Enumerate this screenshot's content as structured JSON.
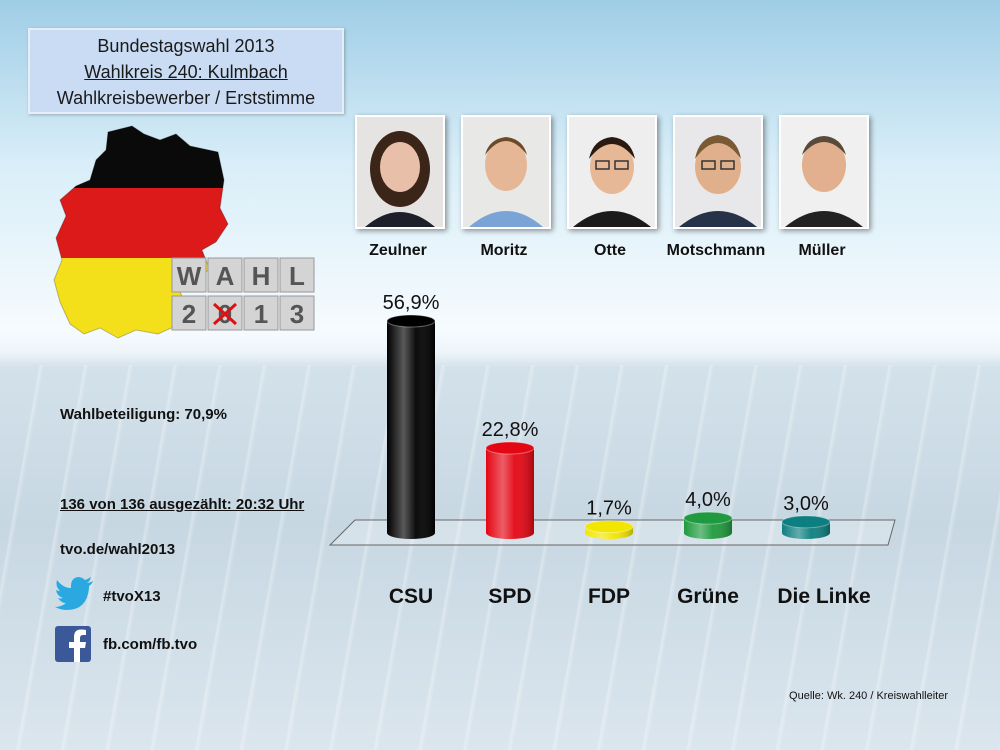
{
  "header": {
    "line1": "Bundestagswahl  2013",
    "line2": "Wahlkreis 240: Kulmbach",
    "line3": "Wahlkreisbewerber  / Erststimme"
  },
  "logo": {
    "row1": [
      "W",
      "A",
      "H",
      "L"
    ],
    "row2": [
      "2",
      "0",
      "1",
      "3"
    ]
  },
  "candidates": [
    {
      "name": "Zeulner"
    },
    {
      "name": "Moritz"
    },
    {
      "name": "Otte"
    },
    {
      "name": "Motschmann"
    },
    {
      "name": "Müller"
    }
  ],
  "info": {
    "turnout": "Wahlbeteiligung: 70,9%",
    "counted": "136 von 136 ausgezählt: 20:32 Uhr",
    "website": "tvo.de/wahl2013"
  },
  "social": {
    "twitter_icon": "twitter-bird-icon",
    "twitter": "#tvoX13",
    "facebook_icon": "facebook-icon",
    "facebook": "fb.com/fb.tvo"
  },
  "source": "Quelle: Wk. 240 / Kreiswahlleiter",
  "chart_data": {
    "type": "bar",
    "categories": [
      "CSU",
      "SPD",
      "FDP",
      "Grüne",
      "Die Linke"
    ],
    "values": [
      56.9,
      22.8,
      1.7,
      4.0,
      3.0
    ],
    "labels": [
      "56,9%",
      "22,8%",
      "1,7%",
      "4,0%",
      "3,0%"
    ],
    "colors": [
      "#000000",
      "#e30613",
      "#f2e600",
      "#1f9a3e",
      "#0e7f80"
    ],
    "title": "",
    "xlabel": "",
    "ylabel": "",
    "ylim": [
      0,
      60
    ],
    "grid": false,
    "legend": "none"
  }
}
